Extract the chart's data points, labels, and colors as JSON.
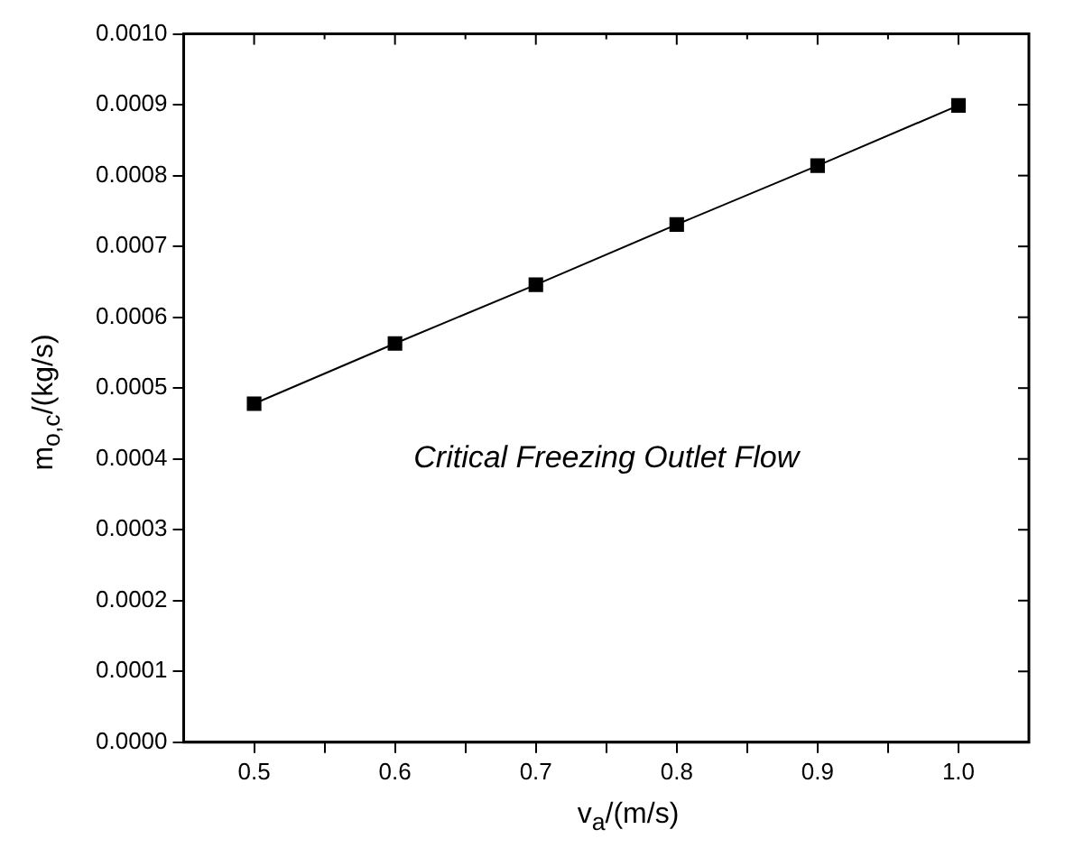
{
  "chart_data": {
    "type": "line",
    "xlabel": "v$_{a}$/(m/s)",
    "ylabel": "m$_{o,c}$/(kg/s)",
    "annotations": [
      "Critical Freezing Outlet Flow"
    ],
    "x": [
      0.5,
      0.6,
      0.7,
      0.8,
      0.9,
      1.0
    ],
    "series": [
      {
        "color": "#000000",
        "values": [
          0.000478,
          0.000563,
          0.000646,
          0.000731,
          0.000814,
          0.000899
        ]
      }
    ],
    "xlim": [
      0.45,
      1.05
    ],
    "xticks": [
      0.5,
      {
        "value": 0.55,
        "label": null
      },
      0.6,
      {
        "value": 0.65,
        "label": null
      },
      0.7,
      {
        "value": 0.75,
        "label": null
      },
      0.8,
      {
        "value": 0.85,
        "label": null
      },
      0.9,
      {
        "value": 0.95,
        "label": null
      },
      {
        "value": 1.0,
        "label": "1.0"
      }
    ],
    "ylim": [
      0,
      0.001
    ],
    "yticks": [
      {
        "value": 0,
        "label": "0.0000"
      },
      {
        "value": 0.0001,
        "label": "0.0001"
      },
      {
        "value": 0.0002,
        "label": "0.0002"
      },
      {
        "value": 0.0003,
        "label": "0.0003"
      },
      {
        "value": 0.0004,
        "label": "0.0004"
      },
      {
        "value": 0.0005,
        "label": "0.0005"
      },
      {
        "value": 0.0006,
        "label": "0.0006"
      },
      {
        "value": 0.0007,
        "label": "0.0007"
      },
      {
        "value": 0.0008,
        "label": "0.0008"
      },
      {
        "value": 0.0009,
        "label": "0.0009"
      },
      {
        "value": 0.001,
        "label": "0.0010"
      }
    ],
    "grid": false,
    "legend": false,
    "marker": "square",
    "line_style": "solid"
  }
}
